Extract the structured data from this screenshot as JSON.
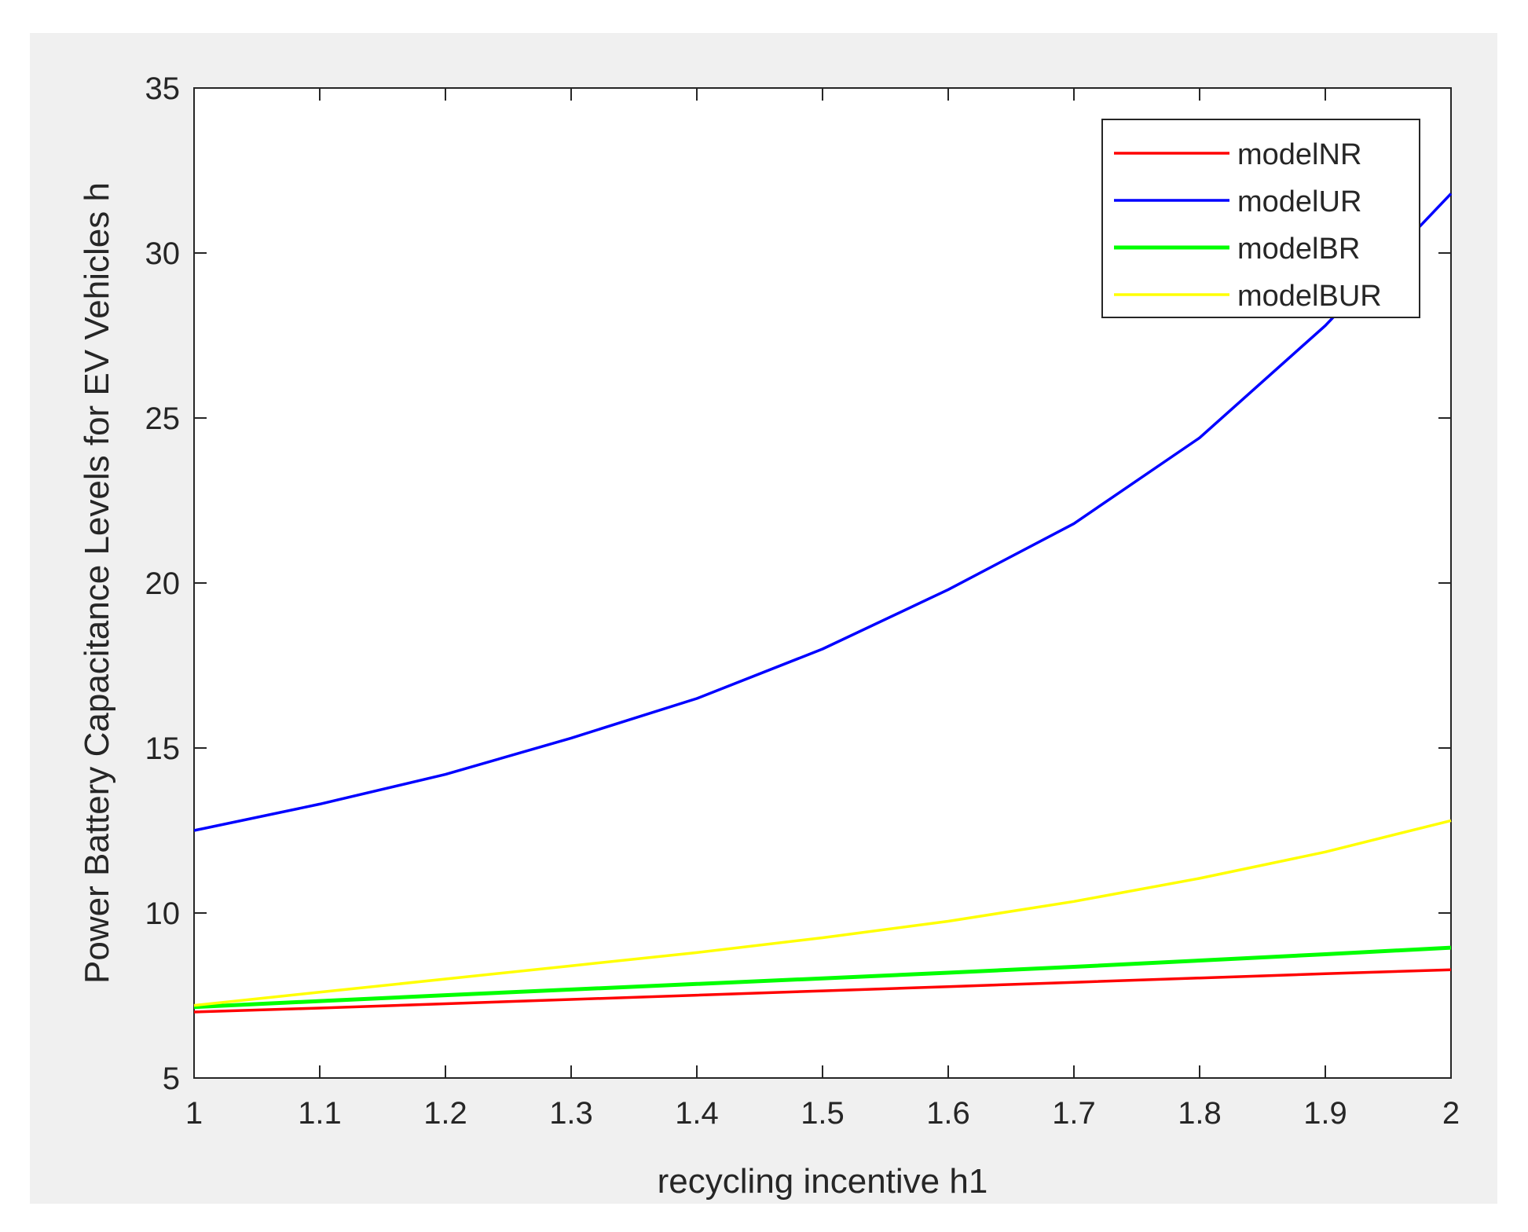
{
  "chart_data": {
    "type": "line",
    "xlabel": "recycling incentive h1",
    "ylabel": "Power Battery Capacitance Levels for EV Vehicles h",
    "xlim": [
      1,
      2
    ],
    "ylim": [
      5,
      35
    ],
    "xticks": [
      "1",
      "1.1",
      "1.2",
      "1.3",
      "1.4",
      "1.5",
      "1.6",
      "1.7",
      "1.8",
      "1.9",
      "2"
    ],
    "yticks": [
      "5",
      "10",
      "15",
      "20",
      "25",
      "30",
      "35"
    ],
    "grid": false,
    "legend_position": "top-right",
    "x": [
      1.0,
      1.1,
      1.2,
      1.3,
      1.4,
      1.5,
      1.6,
      1.7,
      1.8,
      1.9,
      2.0
    ],
    "series": [
      {
        "name": "modelNR",
        "color": "#ff0000",
        "values": [
          7.0,
          7.12,
          7.25,
          7.38,
          7.51,
          7.64,
          7.77,
          7.9,
          8.03,
          8.16,
          8.28
        ]
      },
      {
        "name": "modelUR",
        "color": "#0000ff",
        "values": [
          12.5,
          13.3,
          14.2,
          15.3,
          16.5,
          18.0,
          19.8,
          21.8,
          24.4,
          27.8,
          31.8
        ]
      },
      {
        "name": "modelBR",
        "color": "#00ff00",
        "values": [
          7.15,
          7.33,
          7.51,
          7.68,
          7.85,
          8.02,
          8.19,
          8.37,
          8.56,
          8.75,
          8.95
        ]
      },
      {
        "name": "modelBUR",
        "color": "#ffff00",
        "values": [
          7.2,
          7.6,
          8.0,
          8.4,
          8.8,
          9.25,
          9.75,
          10.35,
          11.05,
          11.85,
          12.8
        ]
      }
    ]
  }
}
